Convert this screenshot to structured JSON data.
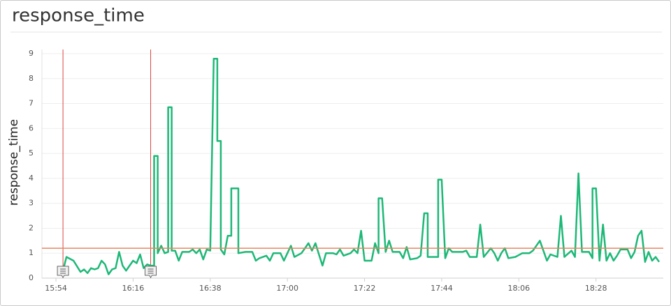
{
  "chart_data": {
    "type": "line",
    "title": "response_time",
    "ylabel": "response_time",
    "x": [
      "15:56",
      "15:57",
      "15:59",
      "16:01",
      "16:02",
      "16:03",
      "16:04",
      "16:05",
      "16:06",
      "16:07",
      "16:08",
      "16:09",
      "16:10",
      "16:11",
      "16:12",
      "16:13",
      "16:14",
      "16:15",
      "16:16",
      "16:17",
      "16:18",
      "16:19",
      "16:20",
      "16:21",
      "16:22",
      "16:22",
      "16:23",
      "16:23",
      "16:24",
      "16:25",
      "16:26",
      "16:26",
      "16:27",
      "16:27",
      "16:28",
      "16:29",
      "16:30",
      "16:32",
      "16:33",
      "16:34",
      "16:35",
      "16:36",
      "16:37",
      "16:38",
      "16:39",
      "16:40",
      "16:40",
      "16:41",
      "16:41",
      "16:42",
      "16:43",
      "16:44",
      "16:44",
      "16:46",
      "16:46",
      "16:48",
      "16:50",
      "16:51",
      "16:52",
      "16:54",
      "16:55",
      "16:56",
      "16:58",
      "16:59",
      "17:00",
      "17:01",
      "17:02",
      "17:04",
      "17:05",
      "17:06",
      "17:07",
      "17:08",
      "17:09",
      "17:10",
      "17:11",
      "17:13",
      "17:14",
      "17:15",
      "17:16",
      "17:18",
      "17:19",
      "17:20",
      "17:21",
      "17:22",
      "17:24",
      "17:25",
      "17:26",
      "17:26",
      "17:27",
      "17:28",
      "17:29",
      "17:30",
      "17:32",
      "17:33",
      "17:34",
      "17:35",
      "17:37",
      "17:38",
      "17:39",
      "17:40",
      "17:40",
      "17:42",
      "17:43",
      "17:43",
      "17:44",
      "17:45",
      "17:46",
      "17:47",
      "17:50",
      "17:51",
      "17:52",
      "17:54",
      "17:55",
      "17:56",
      "17:58",
      "17:59",
      "18:00",
      "18:01",
      "18:02",
      "18:03",
      "18:05",
      "18:07",
      "18:09",
      "18:10",
      "18:12",
      "18:13",
      "18:14",
      "18:15",
      "18:17",
      "18:18",
      "18:19",
      "18:21",
      "18:22",
      "18:23",
      "18:24",
      "18:26",
      "18:27",
      "18:27",
      "18:28",
      "18:29",
      "18:30",
      "18:31",
      "18:32",
      "18:33",
      "18:34",
      "18:35",
      "18:37",
      "18:38",
      "18:39",
      "18:40",
      "18:41",
      "18:42",
      "18:43",
      "18:44",
      "18:45",
      "18:46"
    ],
    "values": [
      0.3,
      0.85,
      0.7,
      0.25,
      0.35,
      0.2,
      0.4,
      0.35,
      0.4,
      0.7,
      0.55,
      0.15,
      0.35,
      0.4,
      1.05,
      0.5,
      0.3,
      0.5,
      0.7,
      0.6,
      0.95,
      0.4,
      0.55,
      0.5,
      0.5,
      4.9,
      4.9,
      1.0,
      1.3,
      1.0,
      1.05,
      6.85,
      6.85,
      1.1,
      1.1,
      0.7,
      1.05,
      1.05,
      1.15,
      1.0,
      1.15,
      0.75,
      1.15,
      1.1,
      8.8,
      8.8,
      5.5,
      5.5,
      1.15,
      0.95,
      1.7,
      1.7,
      3.6,
      3.6,
      1.0,
      1.05,
      1.05,
      0.7,
      0.8,
      0.9,
      0.7,
      1.0,
      1.0,
      0.7,
      1.0,
      1.3,
      0.85,
      1.0,
      1.2,
      1.4,
      1.1,
      1.4,
      0.95,
      0.5,
      1.0,
      1.0,
      0.95,
      1.15,
      0.9,
      1.0,
      1.15,
      1.0,
      1.9,
      0.7,
      0.7,
      1.4,
      1.0,
      3.2,
      3.2,
      1.05,
      1.5,
      1.05,
      1.05,
      0.8,
      1.25,
      0.75,
      0.8,
      0.9,
      2.6,
      2.6,
      0.85,
      0.85,
      0.85,
      3.95,
      3.95,
      0.8,
      1.2,
      1.05,
      1.05,
      1.1,
      0.85,
      0.85,
      2.15,
      0.85,
      1.2,
      1.0,
      0.7,
      1.0,
      1.2,
      0.8,
      0.85,
      1.0,
      1.0,
      1.1,
      1.5,
      1.1,
      0.7,
      0.95,
      0.85,
      2.5,
      0.85,
      1.1,
      0.85,
      4.2,
      1.05,
      1.05,
      0.8,
      3.6,
      3.6,
      0.7,
      2.15,
      0.7,
      1.0,
      0.7,
      0.9,
      1.15,
      1.15,
      0.8,
      1.05,
      1.7,
      1.9,
      0.65,
      1.05,
      0.7,
      0.85,
      0.65
    ],
    "color": "#1db877",
    "xlim": [
      "15:50",
      "18:46"
    ],
    "xticks": [
      "15:54",
      "16:16",
      "16:38",
      "17:00",
      "17:22",
      "17:44",
      "18:06",
      "18:28"
    ],
    "ylim": [
      0,
      9
    ],
    "yticks": [
      0,
      1,
      2,
      3,
      4,
      5,
      6,
      7,
      8,
      9
    ],
    "grid": true,
    "threshold": 1.2,
    "threshold_color": "#e8845e",
    "annotations": [
      "15:56",
      "16:21"
    ],
    "annotation_color": "#d9463b"
  }
}
